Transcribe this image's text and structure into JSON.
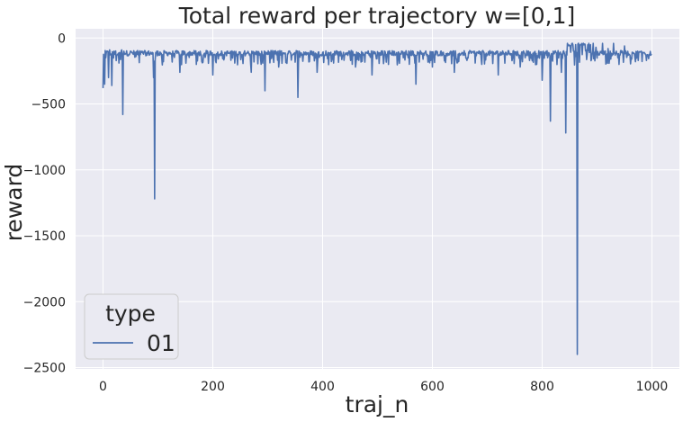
{
  "chart_data": {
    "type": "line",
    "title": "Total reward per trajectory w=[0,1]",
    "xlabel": "traj_n",
    "ylabel": "reward",
    "xlim": [
      -50,
      1050
    ],
    "ylim": [
      -2510,
      70
    ],
    "xticks": [
      0,
      200,
      400,
      600,
      800,
      1000
    ],
    "yticks": [
      0,
      -500,
      -1000,
      -1500,
      -2000,
      -2500
    ],
    "xtick_labels": [
      "0",
      "200",
      "400",
      "600",
      "800",
      "1000"
    ],
    "ytick_labels": [
      "0",
      "−500",
      "−1000",
      "−1500",
      "−2000",
      "−2500"
    ],
    "grid": true,
    "legend": {
      "title": "type",
      "position": "lower-left"
    },
    "series": [
      {
        "name": "01",
        "color": "#4c72b0",
        "x_range": [
          0,
          999
        ],
        "baseline": -115,
        "points": [
          [
            0,
            -380
          ],
          [
            2,
            -220
          ],
          [
            3,
            -350
          ],
          [
            5,
            -150
          ],
          [
            8,
            -100
          ],
          [
            10,
            -300
          ],
          [
            12,
            -90
          ],
          [
            14,
            -120
          ],
          [
            16,
            -360
          ],
          [
            18,
            -110
          ],
          [
            20,
            -100
          ],
          [
            25,
            -130
          ],
          [
            30,
            -110
          ],
          [
            34,
            -90
          ],
          [
            36,
            -580
          ],
          [
            38,
            -100
          ],
          [
            42,
            -120
          ],
          [
            50,
            -100
          ],
          [
            60,
            -140
          ],
          [
            70,
            -110
          ],
          [
            80,
            -130
          ],
          [
            90,
            -110
          ],
          [
            92,
            -300
          ],
          [
            94,
            -1220
          ],
          [
            96,
            -110
          ],
          [
            100,
            -100
          ],
          [
            110,
            -180
          ],
          [
            120,
            -110
          ],
          [
            140,
            -260
          ],
          [
            170,
            -200
          ],
          [
            200,
            -280
          ],
          [
            240,
            -190
          ],
          [
            270,
            -260
          ],
          [
            295,
            -400
          ],
          [
            320,
            -220
          ],
          [
            355,
            -450
          ],
          [
            390,
            -260
          ],
          [
            420,
            -190
          ],
          [
            460,
            -220
          ],
          [
            490,
            -280
          ],
          [
            520,
            -200
          ],
          [
            570,
            -350
          ],
          [
            600,
            -220
          ],
          [
            640,
            -260
          ],
          [
            690,
            -200
          ],
          [
            720,
            -280
          ],
          [
            760,
            -220
          ],
          [
            790,
            -200
          ],
          [
            800,
            -320
          ],
          [
            805,
            -110
          ],
          [
            810,
            -150
          ],
          [
            815,
            -630
          ],
          [
            820,
            -100
          ],
          [
            828,
            -120
          ],
          [
            835,
            -260
          ],
          [
            840,
            -110
          ],
          [
            843,
            -720
          ],
          [
            846,
            -40
          ],
          [
            850,
            -60
          ],
          [
            855,
            -40
          ],
          [
            858,
            -100
          ],
          [
            862,
            -140
          ],
          [
            864,
            -2400
          ],
          [
            866,
            -40
          ],
          [
            870,
            -50
          ],
          [
            875,
            -40
          ],
          [
            880,
            -90
          ],
          [
            885,
            -40
          ],
          [
            890,
            -160
          ],
          [
            893,
            -40
          ],
          [
            898,
            -70
          ],
          [
            905,
            -120
          ],
          [
            910,
            -40
          ],
          [
            920,
            -80
          ],
          [
            925,
            -160
          ],
          [
            930,
            -40
          ],
          [
            935,
            -100
          ],
          [
            940,
            -200
          ],
          [
            946,
            -100
          ],
          [
            950,
            -60
          ],
          [
            960,
            -130
          ],
          [
            970,
            -180
          ],
          [
            980,
            -100
          ],
          [
            990,
            -170
          ],
          [
            999,
            -120
          ]
        ]
      }
    ]
  }
}
